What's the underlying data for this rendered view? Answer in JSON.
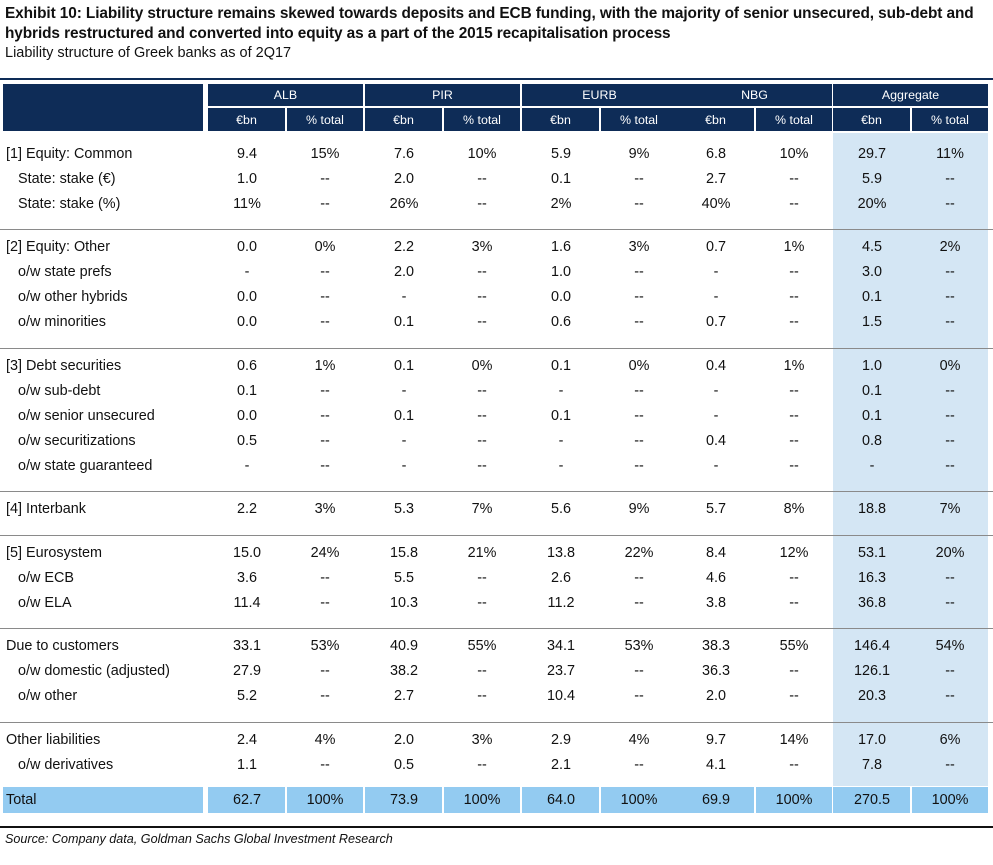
{
  "title": "Exhibit 10: Liability structure remains skewed towards deposits and ECB funding, with the majority of senior unsecured, sub-debt and hybrids restructured and converted into equity as a part of the 2015 recapitalisation process",
  "subtitle": "Liability structure of Greek banks as of 2Q17",
  "columns": {
    "groups": [
      "ALB",
      "PIR",
      "EURB",
      "NBG",
      "Aggregate"
    ],
    "sub": [
      "€bn",
      "% total"
    ]
  },
  "rows": [
    {
      "label": "[1] Equity: Common",
      "sub": false,
      "v": [
        "9.4",
        "15%",
        "7.6",
        "10%",
        "5.9",
        "9%",
        "6.8",
        "10%",
        "29.7",
        "11%"
      ]
    },
    {
      "label": "State: stake (€)",
      "sub": true,
      "v": [
        "1.0",
        "--",
        "2.0",
        "--",
        "0.1",
        "--",
        "2.7",
        "--",
        "5.9",
        "--"
      ]
    },
    {
      "label": "State: stake (%)",
      "sub": true,
      "v": [
        "11%",
        "--",
        "26%",
        "--",
        "2%",
        "--",
        "40%",
        "--",
        "20%",
        "--"
      ]
    },
    {
      "label": "[2] Equity: Other",
      "sub": false,
      "v": [
        "0.0",
        "0%",
        "2.2",
        "3%",
        "1.6",
        "3%",
        "0.7",
        "1%",
        "4.5",
        "2%"
      ]
    },
    {
      "label": "o/w state prefs",
      "sub": true,
      "v": [
        "-",
        "--",
        "2.0",
        "--",
        "1.0",
        "--",
        "-",
        "--",
        "3.0",
        "--"
      ]
    },
    {
      "label": "o/w other hybrids",
      "sub": true,
      "v": [
        "0.0",
        "--",
        "-",
        "--",
        "0.0",
        "--",
        "-",
        "--",
        "0.1",
        "--"
      ]
    },
    {
      "label": "o/w minorities",
      "sub": true,
      "v": [
        "0.0",
        "--",
        "0.1",
        "--",
        "0.6",
        "--",
        "0.7",
        "--",
        "1.5",
        "--"
      ]
    },
    {
      "label": "[3] Debt securities",
      "sub": false,
      "v": [
        "0.6",
        "1%",
        "0.1",
        "0%",
        "0.1",
        "0%",
        "0.4",
        "1%",
        "1.0",
        "0%"
      ]
    },
    {
      "label": "o/w sub-debt",
      "sub": true,
      "v": [
        "0.1",
        "--",
        "-",
        "--",
        "-",
        "--",
        "-",
        "--",
        "0.1",
        "--"
      ]
    },
    {
      "label": "o/w senior unsecured",
      "sub": true,
      "v": [
        "0.0",
        "--",
        "0.1",
        "--",
        "0.1",
        "--",
        "-",
        "--",
        "0.1",
        "--"
      ]
    },
    {
      "label": "o/w securitizations",
      "sub": true,
      "v": [
        "0.5",
        "--",
        "-",
        "--",
        "-",
        "--",
        "0.4",
        "--",
        "0.8",
        "--"
      ]
    },
    {
      "label": "o/w state guaranteed",
      "sub": true,
      "v": [
        "-",
        "--",
        "-",
        "--",
        "-",
        "--",
        "-",
        "--",
        "-",
        "--"
      ]
    },
    {
      "label": "[4] Interbank",
      "sub": false,
      "v": [
        "2.2",
        "3%",
        "5.3",
        "7%",
        "5.6",
        "9%",
        "5.7",
        "8%",
        "18.8",
        "7%"
      ]
    },
    {
      "label": "[5] Eurosystem",
      "sub": false,
      "v": [
        "15.0",
        "24%",
        "15.8",
        "21%",
        "13.8",
        "22%",
        "8.4",
        "12%",
        "53.1",
        "20%"
      ]
    },
    {
      "label": "o/w ECB",
      "sub": true,
      "v": [
        "3.6",
        "--",
        "5.5",
        "--",
        "2.6",
        "--",
        "4.6",
        "--",
        "16.3",
        "--"
      ]
    },
    {
      "label": "o/w ELA",
      "sub": true,
      "v": [
        "11.4",
        "--",
        "10.3",
        "--",
        "11.2",
        "--",
        "3.8",
        "--",
        "36.8",
        "--"
      ]
    },
    {
      "label": "Due to customers",
      "sub": false,
      "v": [
        "33.1",
        "53%",
        "40.9",
        "55%",
        "34.1",
        "53%",
        "38.3",
        "55%",
        "146.4",
        "54%"
      ]
    },
    {
      "label": "o/w domestic (adjusted)",
      "sub": true,
      "v": [
        "27.9",
        "--",
        "38.2",
        "--",
        "23.7",
        "--",
        "36.3",
        "--",
        "126.1",
        "--"
      ]
    },
    {
      "label": "o/w other",
      "sub": true,
      "v": [
        "5.2",
        "--",
        "2.7",
        "--",
        "10.4",
        "--",
        "2.0",
        "--",
        "20.3",
        "--"
      ]
    },
    {
      "label": "Other liabilities",
      "sub": false,
      "v": [
        "2.4",
        "4%",
        "2.0",
        "3%",
        "2.9",
        "4%",
        "9.7",
        "14%",
        "17.0",
        "6%"
      ]
    },
    {
      "label": "o/w derivatives",
      "sub": true,
      "v": [
        "1.1",
        "--",
        "0.5",
        "--",
        "2.1",
        "--",
        "4.1",
        "--",
        "7.8",
        "--"
      ]
    }
  ],
  "total": {
    "label": "Total",
    "v": [
      "62.7",
      "100%",
      "73.9",
      "100%",
      "64.0",
      "100%",
      "69.9",
      "100%",
      "270.5",
      "100%"
    ]
  },
  "source": "Source: Company data, Goldman Sachs Global Investment Research",
  "colors": {
    "header_navy": "#0e2c57",
    "aggregate_bg": "#d4e6f4",
    "total_bar": "#93cbf1"
  }
}
